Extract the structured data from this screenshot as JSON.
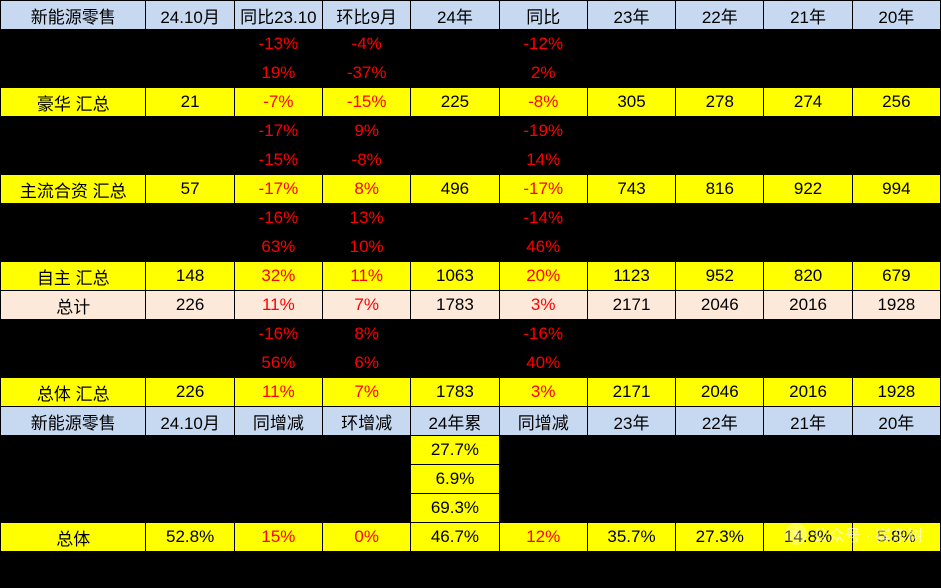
{
  "headers1": [
    "新能源零售",
    "24.10月",
    "同比23.10",
    "环比9月",
    "24年",
    "同比",
    "23年",
    "22年",
    "21年",
    "20年"
  ],
  "rows": [
    {
      "cls": "black",
      "cells": [
        "",
        "",
        "-13%",
        "-4%",
        "",
        "-12%",
        "",
        "",
        "",
        ""
      ],
      "red": [
        2,
        3,
        5
      ]
    },
    {
      "cls": "black",
      "cells": [
        "",
        "",
        "19%",
        "-37%",
        "",
        "2%",
        "",
        "",
        "",
        ""
      ],
      "red": [
        2,
        3,
        5
      ]
    },
    {
      "cls": "yellow",
      "cells": [
        "豪华 汇总",
        "21",
        "-7%",
        "-15%",
        "225",
        "-8%",
        "305",
        "278",
        "274",
        "256"
      ],
      "red": [
        2,
        3,
        5
      ]
    },
    {
      "cls": "black",
      "cells": [
        "",
        "",
        "-17%",
        "9%",
        "",
        "-19%",
        "",
        "",
        "",
        ""
      ],
      "red": [
        2,
        3,
        5
      ]
    },
    {
      "cls": "black",
      "cells": [
        "",
        "",
        "-15%",
        "-8%",
        "",
        "14%",
        "",
        "",
        "",
        ""
      ],
      "red": [
        2,
        3,
        5
      ]
    },
    {
      "cls": "yellow",
      "cells": [
        "主流合资 汇总",
        "57",
        "-17%",
        "8%",
        "496",
        "-17%",
        "743",
        "816",
        "922",
        "994"
      ],
      "red": [
        2,
        3,
        5
      ]
    },
    {
      "cls": "black",
      "cells": [
        "",
        "",
        "-16%",
        "13%",
        "",
        "-14%",
        "",
        "",
        "",
        ""
      ],
      "red": [
        2,
        3,
        5
      ]
    },
    {
      "cls": "black",
      "cells": [
        "",
        "",
        "63%",
        "10%",
        "",
        "46%",
        "",
        "",
        "",
        ""
      ],
      "red": [
        2,
        3,
        5
      ]
    },
    {
      "cls": "yellow",
      "cells": [
        "自主 汇总",
        "148",
        "32%",
        "11%",
        "1063",
        "20%",
        "1123",
        "952",
        "820",
        "679"
      ],
      "red": [
        2,
        3,
        5
      ]
    },
    {
      "cls": "peach",
      "cells": [
        "总计",
        "226",
        "11%",
        "7%",
        "1783",
        "3%",
        "2171",
        "2046",
        "2016",
        "1928"
      ],
      "red": [
        2,
        3,
        5
      ]
    },
    {
      "cls": "black",
      "cells": [
        "",
        "",
        "-16%",
        "8%",
        "",
        "-16%",
        "",
        "",
        "",
        ""
      ],
      "red": [
        2,
        3,
        5
      ]
    },
    {
      "cls": "black",
      "cells": [
        "",
        "",
        "56%",
        "6%",
        "",
        "40%",
        "",
        "",
        "",
        ""
      ],
      "red": [
        2,
        3,
        5
      ]
    },
    {
      "cls": "yellow",
      "cells": [
        "总体 汇总",
        "226",
        "11%",
        "7%",
        "1783",
        "3%",
        "2171",
        "2046",
        "2016",
        "1928"
      ],
      "red": [
        2,
        3,
        5
      ]
    }
  ],
  "headers2": [
    "新能源零售",
    "24.10月",
    "同增减",
    "环增减",
    "24年累",
    "同增减",
    "23年",
    "22年",
    "21年",
    "20年"
  ],
  "rows2": [
    {
      "cells": [
        "",
        "",
        "",
        "",
        "27.7%",
        "",
        "",
        "",
        "",
        ""
      ],
      "yellowIdx": [
        4
      ]
    },
    {
      "cells": [
        "",
        "",
        "",
        "",
        "6.9%",
        "",
        "",
        "",
        "",
        ""
      ],
      "yellowIdx": [
        4
      ]
    },
    {
      "cells": [
        "",
        "",
        "",
        "",
        "69.3%",
        "",
        "",
        "",
        "",
        ""
      ],
      "yellowIdx": [
        4
      ]
    }
  ],
  "finalRow": {
    "cells": [
      "总体",
      "52.8%",
      "15%",
      "0%",
      "46.7%",
      "12%",
      "35.7%",
      "27.3%",
      "14.8%",
      "5.8%"
    ],
    "red": [
      2,
      3,
      5
    ]
  },
  "watermark": {
    "label": "公众号 · 崔东树"
  }
}
